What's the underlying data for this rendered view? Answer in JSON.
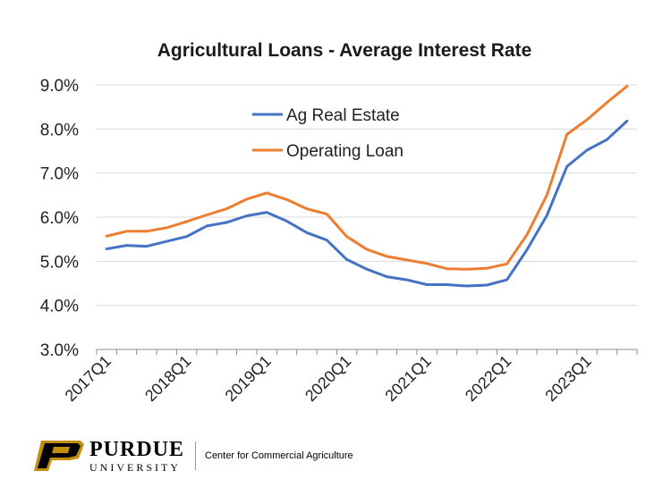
{
  "chart_data": {
    "type": "line",
    "title": "Agricultural Loans - Average Interest Rate",
    "xlabel": "",
    "ylabel": "",
    "ylim": [
      3.0,
      9.0
    ],
    "yticks": [
      "3.0%",
      "4.0%",
      "5.0%",
      "6.0%",
      "7.0%",
      "8.0%",
      "9.0%"
    ],
    "ytick_values": [
      3.0,
      4.0,
      5.0,
      6.0,
      7.0,
      8.0,
      9.0
    ],
    "x": [
      "2017Q1",
      "2017Q2",
      "2017Q3",
      "2017Q4",
      "2018Q1",
      "2018Q2",
      "2018Q3",
      "2018Q4",
      "2019Q1",
      "2019Q2",
      "2019Q3",
      "2019Q4",
      "2020Q1",
      "2020Q2",
      "2020Q3",
      "2020Q4",
      "2021Q1",
      "2021Q2",
      "2021Q3",
      "2021Q4",
      "2022Q1",
      "2022Q2",
      "2022Q3",
      "2022Q4",
      "2023Q1",
      "2023Q2",
      "2023Q3"
    ],
    "xtick_labels": [
      "2017Q1",
      "2018Q1",
      "2019Q1",
      "2020Q1",
      "2021Q1",
      "2022Q1",
      "2023Q1"
    ],
    "series": [
      {
        "name": "Ag Real Estate",
        "color": "#4472C4",
        "values": [
          5.28,
          5.36,
          5.34,
          5.45,
          5.56,
          5.8,
          5.88,
          6.03,
          6.11,
          5.91,
          5.65,
          5.48,
          5.04,
          4.82,
          4.65,
          4.58,
          4.47,
          4.47,
          4.44,
          4.46,
          4.58,
          5.26,
          6.04,
          7.15,
          7.52,
          7.76,
          8.18
        ]
      },
      {
        "name": "Operating Loan",
        "color": "#ED7D31",
        "values": [
          5.57,
          5.68,
          5.68,
          5.76,
          5.9,
          6.05,
          6.19,
          6.41,
          6.55,
          6.4,
          6.19,
          6.07,
          5.56,
          5.27,
          5.11,
          5.03,
          4.95,
          4.83,
          4.82,
          4.84,
          4.94,
          5.6,
          6.5,
          7.88,
          8.21,
          8.6,
          8.97
        ]
      }
    ],
    "grid": "horizontal",
    "legend_position": "upper-center"
  },
  "footer": {
    "brand_name": "PURDUE",
    "brand_sub": "UNIVERSITY",
    "center_name": "Center for Commercial Agriculture"
  }
}
